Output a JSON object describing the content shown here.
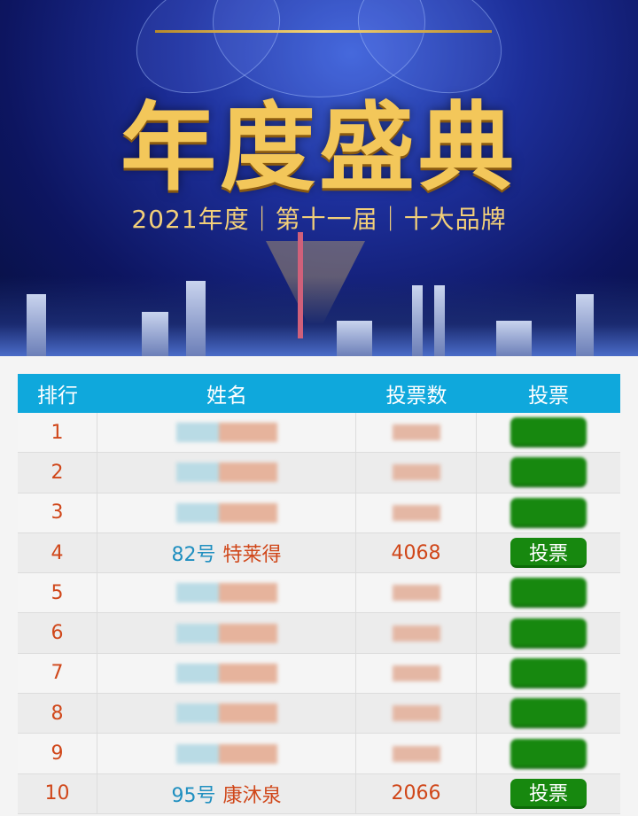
{
  "banner": {
    "title": "年度盛典",
    "subtitle": "2021年度｜第十一届｜十大品牌"
  },
  "table": {
    "headers": [
      "排行",
      "姓名",
      "投票数",
      "投票"
    ],
    "rows": [
      {
        "rank": "1",
        "blurred": true
      },
      {
        "rank": "2",
        "blurred": true
      },
      {
        "rank": "3",
        "blurred": true
      },
      {
        "rank": "4",
        "number": "82号",
        "name": "特莱得",
        "votes": "4068",
        "button": "投票"
      },
      {
        "rank": "5",
        "blurred": true
      },
      {
        "rank": "6",
        "blurred": true
      },
      {
        "rank": "7",
        "blurred": true
      },
      {
        "rank": "8",
        "blurred": true
      },
      {
        "rank": "9",
        "blurred": true
      },
      {
        "rank": "10",
        "number": "95号",
        "name": "康沐泉",
        "votes": "2066",
        "button": "投票"
      }
    ]
  },
  "colors": {
    "header": "#0fa8dc",
    "button": "#17880f",
    "accent": "#d0471a",
    "number": "#1f8fc0"
  }
}
